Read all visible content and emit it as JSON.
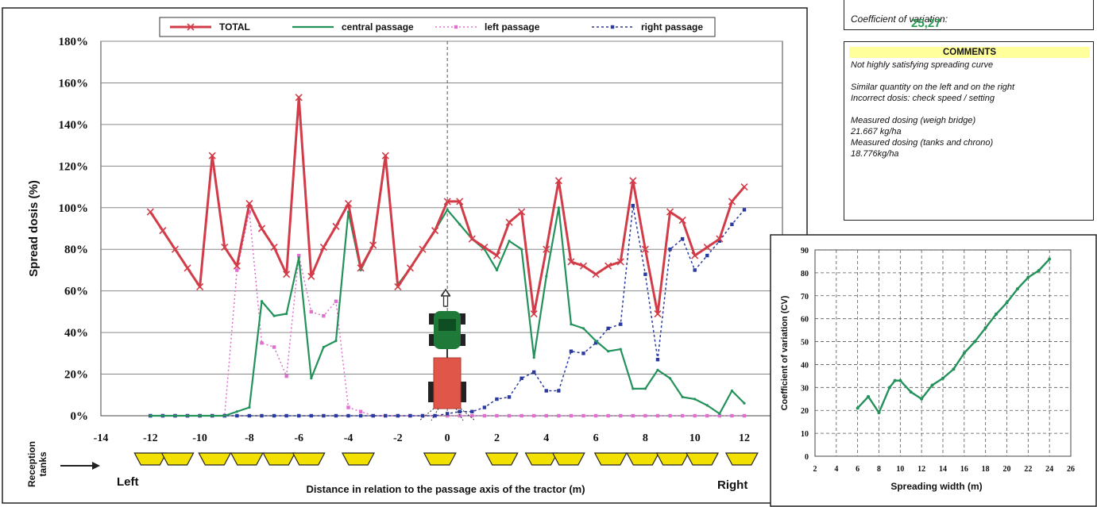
{
  "summary": {
    "cv_label": "Coefficient of variation:",
    "cv_value": "25,27"
  },
  "comments": {
    "title": "COMMENTS",
    "lines": [
      "Not highly satisfying spreading curve",
      "",
      "Similar quantity on the left and on the right",
      "Incorrect dosis: check speed / setting",
      "",
      "Measured dosing (weigh bridge)",
      "21.667 kg/ha",
      "Measured dosing (tanks and chrono)",
      "18.776kg/ha"
    ]
  },
  "reception": {
    "label_line1": "Reception",
    "label_line2": "tanks",
    "left_label": "Left",
    "right_label": "Right",
    "tank_positions": [
      -12,
      -10.9,
      -9.4,
      -8.1,
      -6.8,
      -5.6,
      -3.6,
      -0.3,
      2.2,
      3.8,
      4.9,
      6.6,
      7.9,
      9.1,
      10.3,
      11.9
    ]
  },
  "colors": {
    "total": "#d23c48",
    "central": "#23915a",
    "left": "#e070cf",
    "right": "#2a3aa0",
    "tank": "#f2e100",
    "tractor_body": "#e0574a",
    "tractor_cab": "#1f7a3a"
  },
  "chart_data": [
    {
      "type": "line",
      "title": "",
      "xlabel": "Distance in relation to the passage axis of the tractor (m)",
      "ylabel": "Spread dosis (%)",
      "xlim": [
        -14,
        12
      ],
      "ylim": [
        0,
        180
      ],
      "xticks": [
        "-14",
        "-12",
        "-10",
        "-8",
        "-6",
        "-4",
        "-2",
        "0",
        "2",
        "4",
        "6",
        "8",
        "10",
        "12"
      ],
      "yticks": [
        "0%",
        "20%",
        "40%",
        "60%",
        "80%",
        "100%",
        "120%",
        "140%",
        "160%",
        "180%"
      ],
      "grid": true,
      "legend_position": "top",
      "x": [
        -12,
        -11.5,
        -11,
        -10.5,
        -10,
        -9.5,
        -9,
        -8.5,
        -8,
        -7.5,
        -7,
        -6.5,
        -6,
        -5.5,
        -5,
        -4.5,
        -4,
        -3.5,
        -3,
        -2.5,
        -2,
        -1.5,
        -1,
        -0.5,
        0,
        0.5,
        1,
        1.5,
        2,
        2.5,
        3,
        3.5,
        4,
        4.5,
        5,
        5.5,
        6,
        6.5,
        7,
        7.5,
        8,
        8.5,
        9,
        9.5,
        10,
        10.5,
        11,
        11.5,
        12
      ],
      "series": [
        {
          "name": "TOTAL",
          "values": [
            98,
            89,
            80,
            71,
            62,
            125,
            81,
            72,
            102,
            90,
            81,
            68,
            153,
            67,
            81,
            91,
            102,
            71,
            82,
            125,
            62,
            71,
            80,
            89,
            103,
            103,
            85,
            81,
            77,
            93,
            98,
            49,
            80,
            113,
            74,
            72,
            68,
            72,
            74,
            113,
            80,
            49,
            98,
            94,
            77,
            81,
            85,
            103,
            110
          ]
        },
        {
          "name": "central passage",
          "values": [
            0,
            0,
            0,
            0,
            0,
            0,
            0,
            2,
            4,
            55,
            48,
            49,
            76,
            18,
            33,
            36,
            98,
            70,
            82,
            124,
            63,
            71,
            80,
            89,
            99,
            92,
            85,
            80,
            70,
            84,
            80,
            28,
            67,
            100,
            44,
            42,
            36,
            31,
            32,
            13,
            13,
            22,
            18,
            9,
            8,
            5,
            1,
            12,
            6
          ]
        },
        {
          "name": "left passage",
          "values": [
            0,
            0,
            0,
            0,
            0,
            0,
            0,
            70,
            98,
            35,
            33,
            19,
            77,
            50,
            48,
            55,
            4,
            2,
            0,
            0,
            0,
            0,
            0,
            0,
            0,
            0,
            0,
            0,
            0,
            0,
            0,
            0,
            0,
            0,
            0,
            0,
            0,
            0,
            0,
            0,
            0,
            0,
            0,
            0,
            0,
            0,
            0,
            0,
            0
          ]
        },
        {
          "name": "right passage",
          "values": [
            0,
            0,
            0,
            0,
            0,
            0,
            0,
            0,
            0,
            0,
            0,
            0,
            0,
            0,
            0,
            0,
            0,
            0,
            0,
            0,
            0,
            0,
            0,
            0,
            1,
            2,
            2,
            4,
            8,
            9,
            18,
            21,
            12,
            12,
            31,
            30,
            35,
            42,
            44,
            101,
            68,
            27,
            80,
            85,
            70,
            77,
            84,
            92,
            99
          ]
        }
      ]
    },
    {
      "type": "line",
      "title": "",
      "xlabel": "Spreading width (m)",
      "ylabel": "Coefficient of variation (CV)",
      "xlim": [
        2,
        26
      ],
      "ylim": [
        0,
        90
      ],
      "xticks": [
        "2",
        "4",
        "6",
        "8",
        "10",
        "12",
        "14",
        "16",
        "18",
        "20",
        "22",
        "24",
        "26"
      ],
      "yticks": [
        "0",
        "10",
        "20",
        "30",
        "40",
        "50",
        "60",
        "70",
        "80",
        "90"
      ],
      "grid": true,
      "x": [
        6,
        7,
        8,
        9,
        9.5,
        10,
        11,
        12,
        13,
        14,
        15,
        16,
        17,
        18,
        19,
        20,
        21,
        22,
        23,
        24
      ],
      "series": [
        {
          "name": "",
          "values": [
            21,
            26,
            19,
            30,
            33,
            33,
            28,
            25,
            31,
            34,
            38,
            45,
            50,
            56,
            62,
            67,
            73,
            78,
            81,
            86
          ]
        }
      ]
    }
  ]
}
